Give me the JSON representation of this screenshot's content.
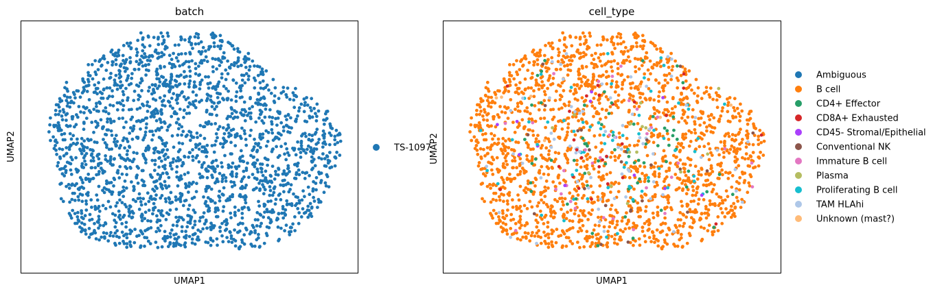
{
  "chart_data": [
    {
      "type": "scatter",
      "title": "batch",
      "xlabel": "UMAP1",
      "ylabel": "UMAP2",
      "ticks": "none",
      "grid": false,
      "legend_placement": "right",
      "legend": [
        {
          "name": "TS-1097",
          "color": "#1f77b4"
        }
      ]
    },
    {
      "type": "scatter",
      "title": "cell_type",
      "xlabel": "UMAP1",
      "ylabel": "UMAP2",
      "ticks": "none",
      "grid": false,
      "legend_placement": "right",
      "legend": [
        {
          "name": "Ambiguous",
          "color": "#1f77b4"
        },
        {
          "name": "B cell",
          "color": "#ff7f0e"
        },
        {
          "name": "CD4+ Effector",
          "color": "#279e68"
        },
        {
          "name": "CD8A+ Exhausted",
          "color": "#d62728"
        },
        {
          "name": "CD45- Stromal/Epithelial",
          "color": "#aa40fc"
        },
        {
          "name": "Conventional NK",
          "color": "#8c564b"
        },
        {
          "name": "Immature B cell",
          "color": "#e377c2"
        },
        {
          "name": "Plasma",
          "color": "#b5bd61"
        },
        {
          "name": "Proliferating B cell",
          "color": "#17becf"
        },
        {
          "name": "TAM HLAhi",
          "color": "#aec7e8"
        },
        {
          "name": "Unknown (mast?)",
          "color": "#ffbb78"
        }
      ]
    }
  ]
}
